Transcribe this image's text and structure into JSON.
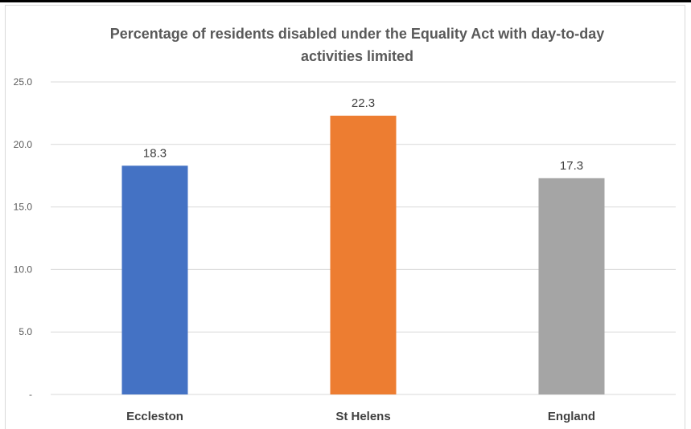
{
  "chart_data": {
    "type": "bar",
    "title": "Percentage of residents disabled under the Equality Act with day-to-day activities limited",
    "title_lines": [
      "Percentage of residents disabled under the Equality Act with day-to-day",
      "activities limited"
    ],
    "categories": [
      "Eccleston",
      "St Helens",
      "England"
    ],
    "values": [
      18.3,
      22.3,
      17.3
    ],
    "value_labels": [
      "18.3",
      "22.3",
      "17.3"
    ],
    "colors": [
      "#4472c4",
      "#ed7d31",
      "#a5a5a5"
    ],
    "ylim": [
      0,
      25
    ],
    "y_ticks": [
      0,
      5,
      10,
      15,
      20,
      25
    ],
    "y_tick_labels": [
      "-",
      "5.0",
      "10.0",
      "15.0",
      "20.0",
      "25.0"
    ],
    "grid": true,
    "gridline_color": "#d9d9d9",
    "xlabel": "",
    "ylabel": ""
  }
}
